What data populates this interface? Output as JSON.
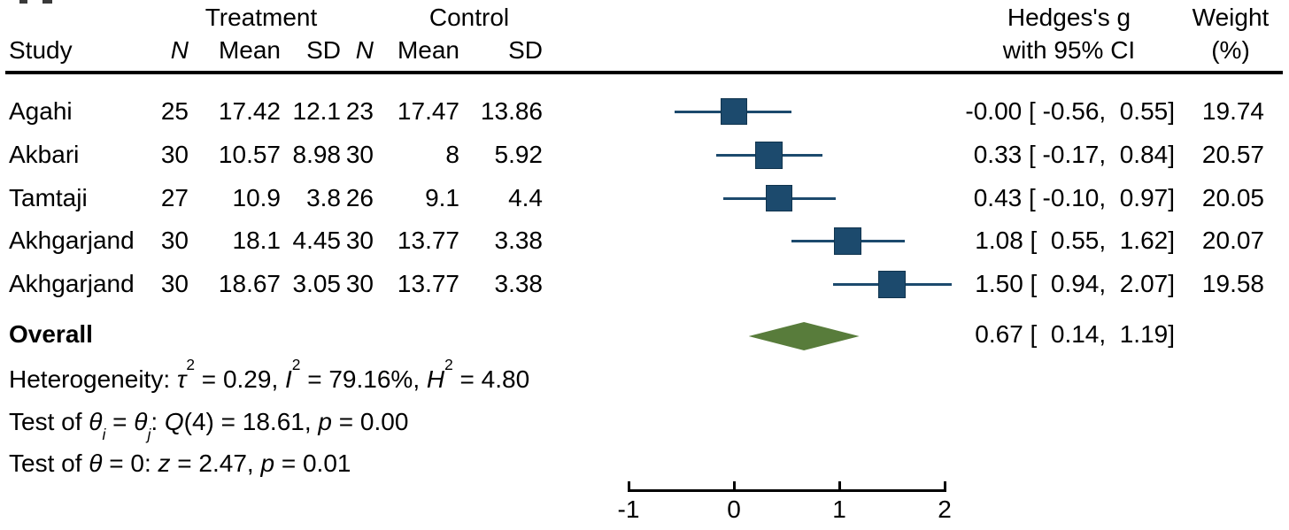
{
  "table": {
    "group_headers": {
      "treatment": "Treatment",
      "control": "Control",
      "effect_line1": "Hedges's g",
      "effect_line2": "with 95% CI",
      "weight_line1": "Weight",
      "weight_line2": "(%)"
    },
    "col_headers": {
      "study": "Study",
      "n": "N",
      "mean": "Mean",
      "sd": "SD"
    },
    "rows": [
      {
        "study": "Agahi",
        "t_n": "25",
        "t_mean": "17.42",
        "t_sd": "12.1",
        "c_n": "23",
        "c_mean": "17.47",
        "c_sd": "13.86",
        "g_ci": "-0.00 [ -0.56,  0.55]",
        "weight": "19.74"
      },
      {
        "study": "Akbari",
        "t_n": "30",
        "t_mean": "10.57",
        "t_sd": "8.98",
        "c_n": "30",
        "c_mean": "8",
        "c_sd": "5.92",
        "g_ci": "0.33 [ -0.17,  0.84]",
        "weight": "20.57"
      },
      {
        "study": "Tamtaji",
        "t_n": "27",
        "t_mean": "10.9",
        "t_sd": "3.8",
        "c_n": "26",
        "c_mean": "9.1",
        "c_sd": "4.4",
        "g_ci": "0.43 [ -0.10,  0.97]",
        "weight": "20.05"
      },
      {
        "study": "Akhgarjand",
        "t_n": "30",
        "t_mean": "18.1",
        "t_sd": "4.45",
        "c_n": "30",
        "c_mean": "13.77",
        "c_sd": "3.38",
        "g_ci": "1.08 [  0.55,  1.62]",
        "weight": "20.07"
      },
      {
        "study": "Akhgarjand",
        "t_n": "30",
        "t_mean": "18.67",
        "t_sd": "3.05",
        "c_n": "30",
        "c_mean": "13.77",
        "c_sd": "3.38",
        "g_ci": "1.50 [  0.94,  2.07]",
        "weight": "19.58"
      }
    ],
    "overall": {
      "label": "Overall",
      "g_ci": "0.67 [  0.14,  1.19]"
    }
  },
  "stats": {
    "heterogeneity": [
      {
        "t": "Heterogeneity: "
      },
      {
        "t": "τ",
        "i": true
      },
      {
        "t": "2",
        "sup": true
      },
      {
        "t": " = 0.29, "
      },
      {
        "t": "I",
        "i": true
      },
      {
        "t": "2",
        "sup": true
      },
      {
        "t": " = 79.16%, "
      },
      {
        "t": "H",
        "i": true
      },
      {
        "t": "2",
        "sup": true
      },
      {
        "t": " = 4.80"
      }
    ],
    "test_q": [
      {
        "t": "Test of "
      },
      {
        "t": "θ",
        "i": true
      },
      {
        "t": "i",
        "sub": true,
        "i": true
      },
      {
        "t": " = "
      },
      {
        "t": "θ",
        "i": true
      },
      {
        "t": "j",
        "sub": true,
        "i": true
      },
      {
        "t": ": "
      },
      {
        "t": "Q",
        "i": true
      },
      {
        "t": "(4) = 18.61, "
      },
      {
        "t": "p",
        "i": true
      },
      {
        "t": " = 0.00"
      }
    ],
    "test_z": [
      {
        "t": "Test of "
      },
      {
        "t": "θ",
        "i": true
      },
      {
        "t": " = 0: "
      },
      {
        "t": "z",
        "i": true
      },
      {
        "t": " = 2.47, "
      },
      {
        "t": "p",
        "i": true
      },
      {
        "t": " = 0.01"
      }
    ]
  },
  "chart_data": {
    "type": "forest",
    "effect_measure": "Hedges's g",
    "studies": [
      {
        "name": "Agahi",
        "n_treat": 25,
        "mean_treat": 17.42,
        "sd_treat": 12.1,
        "n_ctrl": 23,
        "mean_ctrl": 17.47,
        "sd_ctrl": 13.86,
        "g": -0.0,
        "ci_low": -0.56,
        "ci_high": 0.55,
        "weight_pct": 19.74
      },
      {
        "name": "Akbari",
        "n_treat": 30,
        "mean_treat": 10.57,
        "sd_treat": 8.98,
        "n_ctrl": 30,
        "mean_ctrl": 8,
        "sd_ctrl": 5.92,
        "g": 0.33,
        "ci_low": -0.17,
        "ci_high": 0.84,
        "weight_pct": 20.57
      },
      {
        "name": "Tamtaji",
        "n_treat": 27,
        "mean_treat": 10.9,
        "sd_treat": 3.8,
        "n_ctrl": 26,
        "mean_ctrl": 9.1,
        "sd_ctrl": 4.4,
        "g": 0.43,
        "ci_low": -0.1,
        "ci_high": 0.97,
        "weight_pct": 20.05
      },
      {
        "name": "Akhgarjand",
        "n_treat": 30,
        "mean_treat": 18.1,
        "sd_treat": 4.45,
        "n_ctrl": 30,
        "mean_ctrl": 13.77,
        "sd_ctrl": 3.38,
        "g": 1.08,
        "ci_low": 0.55,
        "ci_high": 1.62,
        "weight_pct": 20.07
      },
      {
        "name": "Akhgarjand",
        "n_treat": 30,
        "mean_treat": 18.67,
        "sd_treat": 3.05,
        "n_ctrl": 30,
        "mean_ctrl": 13.77,
        "sd_ctrl": 3.38,
        "g": 1.5,
        "ci_low": 0.94,
        "ci_high": 2.07,
        "weight_pct": 19.58
      }
    ],
    "overall": {
      "g": 0.67,
      "ci_low": 0.14,
      "ci_high": 1.19
    },
    "heterogeneity": {
      "tau2": 0.29,
      "I2_pct": 79.16,
      "H2": 4.8,
      "Q_df": 4,
      "Q": 18.61,
      "p_Q": 0.0,
      "z": 2.47,
      "p_z": 0.01
    },
    "axis": {
      "ticks": [
        -1,
        0,
        1,
        2
      ],
      "range": [
        -1,
        2
      ]
    },
    "colors": {
      "square": "#1c4a6d",
      "whisker": "#1c4a6d",
      "diamond": "#587c3b"
    }
  }
}
